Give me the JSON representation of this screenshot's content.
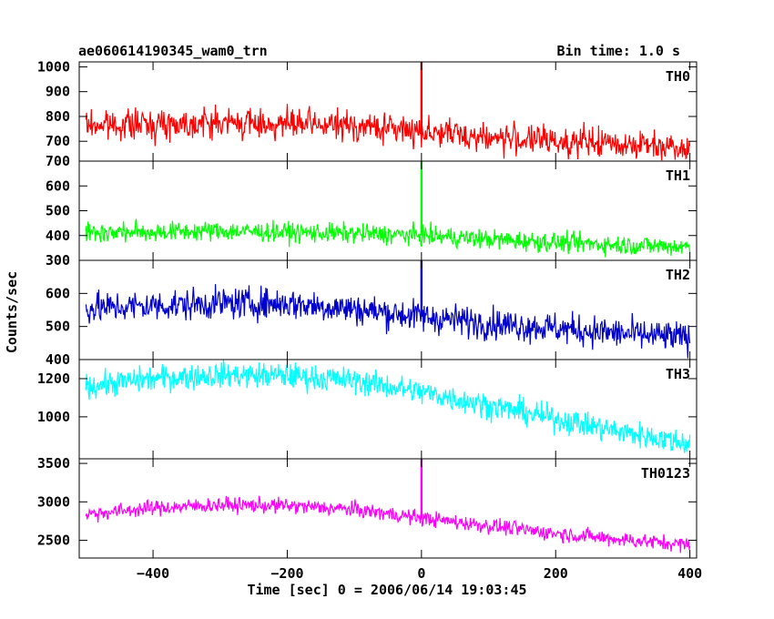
{
  "header": {
    "title": "ae060614190345_wam0_trn",
    "bin_time": "Bin time: 1.0 s"
  },
  "axes": {
    "xlabel": "Time [sec] 0 = 2006/06/14 19:03:45",
    "ylabel": "Counts/sec",
    "xlim": [
      -510,
      410
    ],
    "xticks": [
      -400,
      -200,
      0,
      200,
      400
    ],
    "xtick_labels": [
      "−400",
      "−200",
      "0",
      "200",
      "400"
    ]
  },
  "chart_data": {
    "type": "line",
    "title": "ae060614190345_wam0_trn",
    "xlabel": "Time [sec] 0 = 2006/06/14 19:03:45",
    "ylabel": "Counts/sec",
    "x_range": [
      -500,
      400
    ],
    "bin_seconds": 1.0,
    "grid": false,
    "panels": [
      {
        "name": "TH0",
        "color": "#ff0000",
        "ylim": [
          620,
          1020
        ],
        "yticks": [
          700,
          800,
          900,
          1000
        ],
        "trend_t": [
          -500,
          -300,
          -100,
          0,
          100,
          200,
          300,
          400
        ],
        "trend_y": [
          765,
          775,
          762,
          742,
          715,
          700,
          690,
          680
        ],
        "noise": 30,
        "spike_t": 0,
        "spike_top": 1020
      },
      {
        "name": "TH1",
        "color": "#00ff00",
        "ylim": [
          300,
          700
        ],
        "yticks": [
          300,
          400,
          500,
          600,
          700
        ],
        "trend_t": [
          -500,
          -300,
          -100,
          0,
          100,
          200,
          300,
          400
        ],
        "trend_y": [
          412,
          418,
          408,
          400,
          385,
          372,
          362,
          355
        ],
        "noise": 20,
        "spike_t": 0,
        "spike_top": 700
      },
      {
        "name": "TH2",
        "color": "#0000cc",
        "ylim": [
          400,
          700
        ],
        "yticks": [
          400,
          500,
          600
        ],
        "trend_t": [
          -500,
          -300,
          -200,
          -100,
          0,
          100,
          200,
          300,
          400
        ],
        "trend_y": [
          555,
          570,
          570,
          553,
          530,
          510,
          495,
          478,
          465
        ],
        "noise": 24,
        "spike_t": 0,
        "spike_top": 700
      },
      {
        "name": "TH3",
        "color": "#00ffff",
        "ylim": [
          780,
          1300
        ],
        "yticks": [
          1000,
          1200
        ],
        "trend_t": [
          -500,
          -400,
          -300,
          -200,
          -100,
          0,
          100,
          200,
          300,
          400
        ],
        "trend_y": [
          1160,
          1200,
          1220,
          1215,
          1190,
          1130,
          1060,
          990,
          920,
          860
        ],
        "noise": 34,
        "spike_t": null,
        "spike_top": null
      },
      {
        "name": "TH0123",
        "color": "#ff00ff",
        "ylim": [
          2270,
          3560
        ],
        "yticks": [
          2500,
          3000,
          3500
        ],
        "trend_t": [
          -500,
          -400,
          -300,
          -200,
          -100,
          0,
          100,
          200,
          300,
          400
        ],
        "trend_y": [
          2840,
          2920,
          2960,
          2950,
          2900,
          2790,
          2690,
          2590,
          2510,
          2440
        ],
        "noise": 50,
        "spike_t": 0,
        "spike_top": 3560
      }
    ]
  }
}
